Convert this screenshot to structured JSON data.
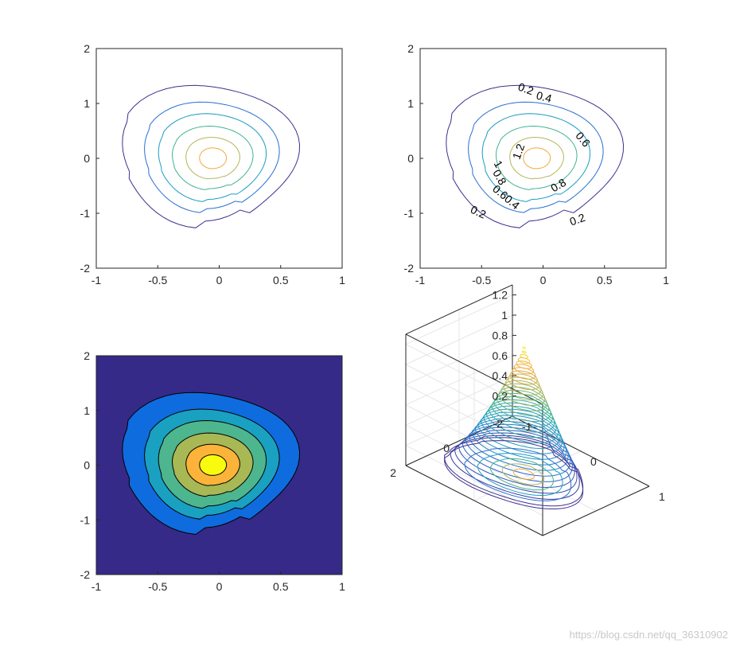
{
  "watermark": "https://blog.csdn.net/qq_36310902",
  "colors": {
    "levels": [
      "#3e2f8f",
      "#2a6fd0",
      "#1a9cc4",
      "#3fb48c",
      "#b5b658",
      "#f2a93b",
      "#f6ef2a"
    ],
    "fill_levels": [
      "#352a87",
      "#0e6cdf",
      "#1aa0c0",
      "#4db68e",
      "#a7b855",
      "#fbb33a",
      "#f9fb0e"
    ],
    "axes": "#262626",
    "grid": "#e6e6e6"
  },
  "chart_data": [
    {
      "id": "contour",
      "type": "contour",
      "filled": false,
      "show_labels": false,
      "xlim": [
        -1,
        1
      ],
      "ylim": [
        -2,
        2
      ],
      "xticks": [
        "-1",
        "-0.5",
        "0",
        "0.5",
        "1"
      ],
      "yticks": [
        "-2",
        "-1",
        "0",
        "1",
        "2"
      ],
      "center": [
        -0.05,
        0.0
      ],
      "levels": [
        0.2,
        0.4,
        0.6,
        0.8,
        1.0,
        1.2
      ],
      "level_radii": [
        {
          "level": 0.2,
          "rx": 0.72,
          "ry": 1.28
        },
        {
          "level": 0.4,
          "rx": 0.55,
          "ry": 1.0
        },
        {
          "level": 0.6,
          "rx": 0.44,
          "ry": 0.8
        },
        {
          "level": 0.8,
          "rx": 0.33,
          "ry": 0.58
        },
        {
          "level": 1.0,
          "rx": 0.22,
          "ry": 0.38
        },
        {
          "level": 1.2,
          "rx": 0.11,
          "ry": 0.19
        }
      ]
    },
    {
      "id": "contour-labeled",
      "type": "contour",
      "filled": false,
      "show_labels": true,
      "xlim": [
        -1,
        1
      ],
      "ylim": [
        -2,
        2
      ],
      "xticks": [
        "-1",
        "-0.5",
        "0",
        "0.5",
        "1"
      ],
      "yticks": [
        "-2",
        "-1",
        "0",
        "1",
        "2"
      ],
      "labels": [
        {
          "text": "0.2",
          "x": -0.15,
          "y": 1.2,
          "angle": 20
        },
        {
          "text": "0.4",
          "x": 0.0,
          "y": 1.05,
          "angle": 15
        },
        {
          "text": "0.6",
          "x": 0.3,
          "y": 0.3,
          "angle": 50
        },
        {
          "text": "1.2",
          "x": -0.17,
          "y": 0.1,
          "angle": -70
        },
        {
          "text": "1",
          "x": -0.39,
          "y": -0.14,
          "angle": 60
        },
        {
          "text": "0.8",
          "x": -0.38,
          "y": -0.38,
          "angle": 60
        },
        {
          "text": "0.60.4",
          "x": -0.32,
          "y": -0.76,
          "angle": 40
        },
        {
          "text": "0.8",
          "x": 0.14,
          "y": -0.55,
          "angle": -30
        },
        {
          "text": "0.2",
          "x": -0.54,
          "y": -1.04,
          "angle": 25
        },
        {
          "text": "0.2",
          "x": 0.29,
          "y": -1.18,
          "angle": -20
        }
      ]
    },
    {
      "id": "contourf",
      "type": "contourf",
      "filled": true,
      "xlim": [
        -1,
        1
      ],
      "ylim": [
        -2,
        2
      ],
      "xticks": [
        "-1",
        "-0.5",
        "0",
        "0.5",
        "1"
      ],
      "yticks": [
        "-2",
        "-1",
        "0",
        "1",
        "2"
      ]
    },
    {
      "id": "contour3",
      "type": "contour3",
      "xlim": [
        -1,
        1
      ],
      "ylim": [
        -2,
        2
      ],
      "zlim": [
        0,
        1.3
      ],
      "xticks": [
        "-1",
        "0",
        "1"
      ],
      "yticks": [
        "-2",
        "0",
        "2"
      ],
      "zticks": [
        "0.2",
        "0.4",
        "0.6",
        "0.8",
        "1",
        "1.2"
      ],
      "n_levels": 30,
      "peak": 1.25
    }
  ]
}
